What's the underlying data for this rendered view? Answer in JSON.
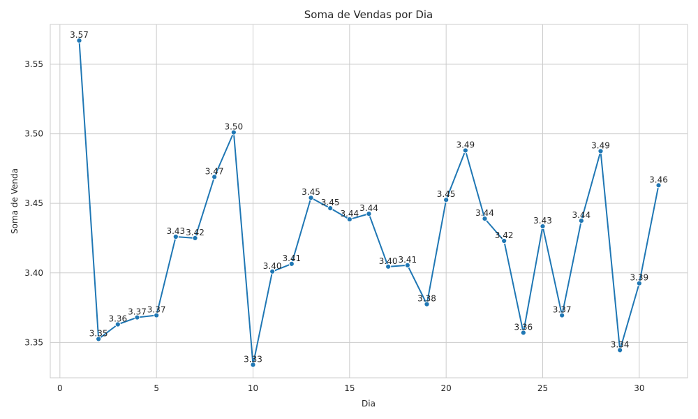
{
  "chart_data": {
    "type": "line",
    "title": "Soma de Vendas por Dia",
    "xlabel": "Dia",
    "ylabel": "Soma de Venda",
    "xlim": [
      -0.5,
      32.5
    ],
    "ylim": [
      3.3246,
      3.5786
    ],
    "xticks": [
      0,
      5,
      10,
      15,
      20,
      25,
      30
    ],
    "yticks": [
      3.35,
      3.4,
      3.45,
      3.5,
      3.55
    ],
    "grid": true,
    "colors": {
      "series": "#1f77b4",
      "grid": "#cccccc",
      "text": "#262626"
    },
    "series": [
      {
        "x": [
          1,
          2,
          3,
          4,
          5,
          6,
          7,
          8,
          9,
          10,
          11,
          12,
          13,
          14,
          15,
          16,
          17,
          18,
          19,
          20,
          21,
          22,
          23,
          24,
          25,
          26,
          27,
          28,
          29,
          30,
          31
        ],
        "values": [
          3.567,
          3.3525,
          3.363,
          3.368,
          3.3695,
          3.426,
          3.425,
          3.469,
          3.501,
          3.334,
          3.401,
          3.4065,
          3.454,
          3.4465,
          3.4385,
          3.4425,
          3.4045,
          3.4055,
          3.3775,
          3.4525,
          3.488,
          3.439,
          3.423,
          3.357,
          3.4335,
          3.3695,
          3.4375,
          3.4875,
          3.3445,
          3.3925,
          3.463
        ],
        "labels": [
          "3.57",
          "3.35",
          "3.36",
          "3.37",
          "3.37",
          "3.43",
          "3.42",
          "3.47",
          "3.50",
          "3.33",
          "3.40",
          "3.41",
          "3.45",
          "3.45",
          "3.44",
          "3.44",
          "3.40",
          "3.41",
          "3.38",
          "3.45",
          "3.49",
          "3.44",
          "3.42",
          "3.36",
          "3.43",
          "3.37",
          "3.44",
          "3.49",
          "3.34",
          "3.39",
          "3.46"
        ]
      }
    ]
  }
}
